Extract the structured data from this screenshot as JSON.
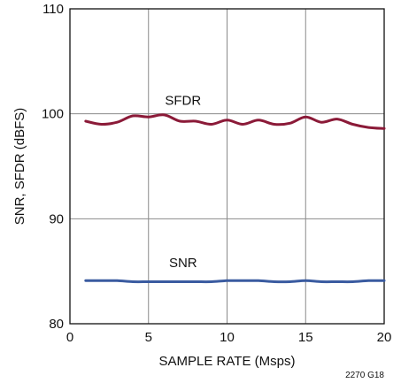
{
  "chart_data": {
    "type": "line",
    "xlabel": "SAMPLE RATE (Msps)",
    "ylabel": "SNR, SFDR (dBFS)",
    "xlim": [
      0,
      20
    ],
    "ylim": [
      80,
      110
    ],
    "x_ticks": [
      "0",
      "5",
      "10",
      "15",
      "20"
    ],
    "y_ticks": [
      "80",
      "90",
      "100",
      "110"
    ],
    "grid": true,
    "figure_id": "2270 G18",
    "series": [
      {
        "name": "SFDR",
        "color": "#8b1a38",
        "x": [
          1,
          2,
          3,
          4,
          5,
          6,
          7,
          8,
          9,
          10,
          11,
          12,
          13,
          14,
          15,
          16,
          17,
          18,
          19,
          20
        ],
        "values": [
          99.3,
          99.0,
          99.2,
          99.8,
          99.7,
          99.9,
          99.3,
          99.3,
          99.0,
          99.4,
          99.0,
          99.4,
          99.0,
          99.1,
          99.7,
          99.2,
          99.5,
          99.0,
          98.7,
          98.6
        ]
      },
      {
        "name": "SNR",
        "color": "#3a5ba0",
        "x": [
          1,
          2,
          3,
          4,
          5,
          6,
          7,
          8,
          9,
          10,
          11,
          12,
          13,
          14,
          15,
          16,
          17,
          18,
          19,
          20
        ],
        "values": [
          84.1,
          84.1,
          84.1,
          84.0,
          84.0,
          84.0,
          84.0,
          84.0,
          84.0,
          84.1,
          84.1,
          84.1,
          84.0,
          84.0,
          84.1,
          84.0,
          84.0,
          84.0,
          84.1,
          84.1
        ]
      }
    ]
  }
}
